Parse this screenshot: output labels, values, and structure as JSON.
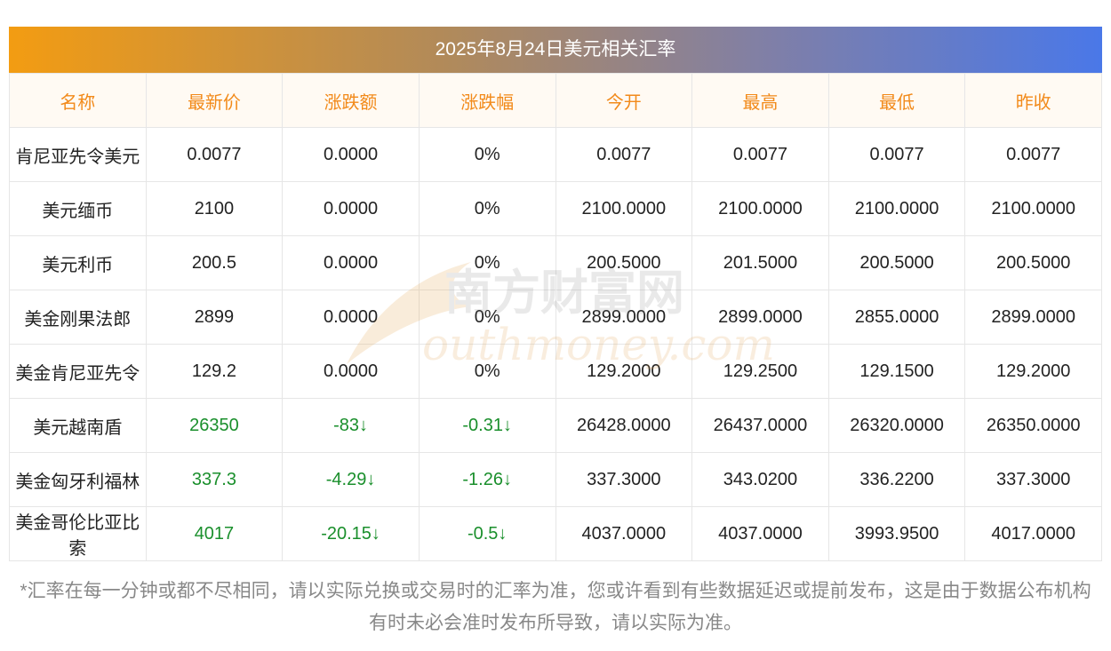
{
  "title": "2025年8月24日美元相关汇率",
  "columns": [
    "名称",
    "最新价",
    "涨跌额",
    "涨跌幅",
    "今开",
    "最高",
    "最低",
    "昨收"
  ],
  "rows": [
    {
      "name": "肯尼亚先令美元",
      "latest": "0.0077",
      "change": "0.0000",
      "pct": "0%",
      "open": "0.0077",
      "high": "0.0077",
      "low": "0.0077",
      "prev": "0.0077",
      "down": false
    },
    {
      "name": "美元缅币",
      "latest": "2100",
      "change": "0.0000",
      "pct": "0%",
      "open": "2100.0000",
      "high": "2100.0000",
      "low": "2100.0000",
      "prev": "2100.0000",
      "down": false
    },
    {
      "name": "美元利币",
      "latest": "200.5",
      "change": "0.0000",
      "pct": "0%",
      "open": "200.5000",
      "high": "201.5000",
      "low": "200.5000",
      "prev": "200.5000",
      "down": false
    },
    {
      "name": "美金刚果法郎",
      "latest": "2899",
      "change": "0.0000",
      "pct": "0%",
      "open": "2899.0000",
      "high": "2899.0000",
      "low": "2855.0000",
      "prev": "2899.0000",
      "down": false
    },
    {
      "name": "美金肯尼亚先令",
      "latest": "129.2",
      "change": "0.0000",
      "pct": "0%",
      "open": "129.2000",
      "high": "129.2500",
      "low": "129.1500",
      "prev": "129.2000",
      "down": false
    },
    {
      "name": "美元越南盾",
      "latest": "26350",
      "change": "-83↓",
      "pct": "-0.31↓",
      "open": "26428.0000",
      "high": "26437.0000",
      "low": "26320.0000",
      "prev": "26350.0000",
      "down": true
    },
    {
      "name": "美金匈牙利福林",
      "latest": "337.3",
      "change": "-4.29↓",
      "pct": "-1.26↓",
      "open": "337.3000",
      "high": "343.0200",
      "low": "336.2200",
      "prev": "337.3000",
      "down": true
    },
    {
      "name": "美金哥伦比亚比索",
      "latest": "4017",
      "change": "-20.15↓",
      "pct": "-0.5↓",
      "open": "4037.0000",
      "high": "4037.0000",
      "low": "3993.9500",
      "prev": "4017.0000",
      "down": true
    }
  ],
  "watermark": {
    "cn": "南方财富网",
    "en": "outhmoney.com"
  },
  "footer_note": "*汇率在每一分钟或都不尽相同，请以实际兑换或交易时的汇率为准，您或许看到有些数据延迟或提前发布，这是由于数据公布机构有时未必会准时发布所导致，请以实际为准。",
  "colors": {
    "header_text": "#f28a1a",
    "down": "#1a8f2c",
    "gradient_start": "#f39c12",
    "gradient_end": "#4a78e8"
  }
}
